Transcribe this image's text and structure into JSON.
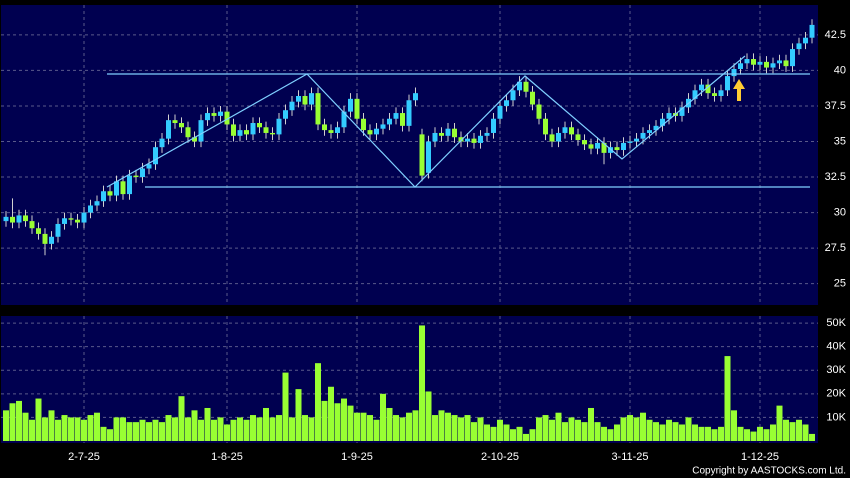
{
  "chart_data": [
    {
      "type": "candlestick",
      "up_color": "#33ccff",
      "down_color": "#99ff33",
      "grid": true,
      "categories": [
        null,
        null,
        null,
        null,
        null,
        null,
        null,
        null,
        null,
        null,
        null,
        null,
        "2-7-25",
        null,
        null,
        null,
        null,
        null,
        null,
        null,
        null,
        null,
        null,
        null,
        null,
        null,
        null,
        null,
        null,
        null,
        null,
        null,
        null,
        null,
        "1-8-25",
        null,
        null,
        null,
        null,
        null,
        null,
        null,
        null,
        null,
        null,
        null,
        null,
        null,
        null,
        null,
        null,
        null,
        null,
        null,
        "1-9-25",
        null,
        null,
        null,
        null,
        null,
        null,
        null,
        null,
        null,
        null,
        null,
        null,
        null,
        null,
        null,
        null,
        null,
        null,
        null,
        null,
        null,
        "2-10-25",
        null,
        null,
        null,
        null,
        null,
        null,
        null,
        null,
        null,
        null,
        null,
        null,
        null,
        null,
        null,
        null,
        null,
        null,
        null,
        "3-11-25",
        null,
        null,
        null,
        null,
        null,
        null,
        null,
        null,
        null,
        null,
        null,
        null,
        null,
        null,
        null,
        null,
        null,
        null,
        null,
        "1-12-25",
        null,
        null,
        null,
        null,
        null,
        null,
        null,
        null
      ],
      "open": [
        29.4,
        29.7,
        29.3,
        29.8,
        29.4,
        28.9,
        28.5,
        27.8,
        28.3,
        29.2,
        29.6,
        29.5,
        29.3,
        30.0,
        30.5,
        30.8,
        31.5,
        31.2,
        32.2,
        31.3,
        32.6,
        32.5,
        33.1,
        33.4,
        34.6,
        35.2,
        36.5,
        36.3,
        36.0,
        35.3,
        35.0,
        36.5,
        37.0,
        36.8,
        37.1,
        36.2,
        35.4,
        35.8,
        35.5,
        36.3,
        36.0,
        35.6,
        35.5,
        36.6,
        37.2,
        37.8,
        38.2,
        37.6,
        38.4,
        36.2,
        35.8,
        35.6,
        36.0,
        37.1,
        38.0,
        36.6,
        35.8,
        35.5,
        35.9,
        36.2,
        36.6,
        37.0,
        36.1,
        37.9,
        35.5,
        32.8,
        35.0,
        35.6,
        35.4,
        35.9,
        35.3,
        35.0,
        35.2,
        34.9,
        35.4,
        35.6,
        36.6,
        37.5,
        37.9,
        38.6,
        39.2,
        38.5,
        37.6,
        36.6,
        35.5,
        35.0,
        35.6,
        36.0,
        35.5,
        35.1,
        34.8,
        34.5,
        34.9,
        34.2,
        34.6,
        34.4,
        34.9,
        35.0,
        35.2,
        35.6,
        35.8,
        36.1,
        36.6,
        37.0,
        36.8,
        37.4,
        38.0,
        38.6,
        39.0,
        38.4,
        38.2,
        38.6,
        39.6,
        40.1,
        40.5,
        40.8,
        40.4,
        40.6,
        40.2,
        40.5,
        40.7,
        40.3,
        41.5,
        41.9,
        42.3
      ],
      "high": [
        30.1,
        31.0,
        30.2,
        30.2,
        29.8,
        29.3,
        28.9,
        28.7,
        29.6,
        30.0,
        30.0,
        29.9,
        30.4,
        30.9,
        31.2,
        31.9,
        31.9,
        32.6,
        32.6,
        33.0,
        33.0,
        33.5,
        33.8,
        35.0,
        35.6,
        36.9,
        36.9,
        36.7,
        36.4,
        35.7,
        36.9,
        37.4,
        37.4,
        37.5,
        37.5,
        36.6,
        36.2,
        36.2,
        36.7,
        36.7,
        36.4,
        36.0,
        37.0,
        37.6,
        38.2,
        38.6,
        38.6,
        38.8,
        38.8,
        36.6,
        36.2,
        36.4,
        37.5,
        38.4,
        38.4,
        37.0,
        36.2,
        36.3,
        36.6,
        37.0,
        37.4,
        37.4,
        38.3,
        38.8,
        35.9,
        35.4,
        36.0,
        36.0,
        36.3,
        36.3,
        35.7,
        35.6,
        35.6,
        35.8,
        36.0,
        37.0,
        37.9,
        38.3,
        39.0,
        39.6,
        39.6,
        38.9,
        38.0,
        37.0,
        35.9,
        36.0,
        36.4,
        36.4,
        35.9,
        35.5,
        35.2,
        35.3,
        35.3,
        35.0,
        35.0,
        35.3,
        35.4,
        35.6,
        36.0,
        36.2,
        36.5,
        37.0,
        37.4,
        37.4,
        37.8,
        38.4,
        39.0,
        39.4,
        39.4,
        38.8,
        39.0,
        40.0,
        40.5,
        40.9,
        41.2,
        41.2,
        41.0,
        41.0,
        40.9,
        41.1,
        41.1,
        41.9,
        42.3,
        42.7,
        43.6
      ],
      "low": [
        29.0,
        28.9,
        28.9,
        29.0,
        28.5,
        28.1,
        27.0,
        27.4,
        27.9,
        28.8,
        29.1,
        28.9,
        28.9,
        29.6,
        30.1,
        30.4,
        30.8,
        30.8,
        30.9,
        30.9,
        32.1,
        32.1,
        32.7,
        33.0,
        34.2,
        34.8,
        35.9,
        35.6,
        34.9,
        34.6,
        34.6,
        36.1,
        36.4,
        36.4,
        35.8,
        35.0,
        35.0,
        35.1,
        35.1,
        35.6,
        35.2,
        35.1,
        35.1,
        36.2,
        36.8,
        37.4,
        37.2,
        37.2,
        35.8,
        35.4,
        35.2,
        35.2,
        35.6,
        36.7,
        36.2,
        35.4,
        35.1,
        35.1,
        35.5,
        35.8,
        36.2,
        35.7,
        35.7,
        37.5,
        32.2,
        32.4,
        34.6,
        35.0,
        35.0,
        34.9,
        34.6,
        34.6,
        34.5,
        34.5,
        35.0,
        35.2,
        36.2,
        37.1,
        37.5,
        38.2,
        38.1,
        37.2,
        36.2,
        35.1,
        34.6,
        34.6,
        35.2,
        35.1,
        34.7,
        34.4,
        34.1,
        34.1,
        33.4,
        33.8,
        34.0,
        34.0,
        34.5,
        34.6,
        34.8,
        35.2,
        35.4,
        35.7,
        36.2,
        36.4,
        36.4,
        37.0,
        37.6,
        38.2,
        38.0,
        37.8,
        37.8,
        38.2,
        39.2,
        39.7,
        40.1,
        40.0,
        40.0,
        39.8,
        39.8,
        40.1,
        39.9,
        39.9,
        41.1,
        41.5,
        41.9
      ],
      "close": [
        29.7,
        29.3,
        29.8,
        29.4,
        28.9,
        28.5,
        27.8,
        28.3,
        29.2,
        29.6,
        29.5,
        29.3,
        30.0,
        30.5,
        30.8,
        31.5,
        31.2,
        32.2,
        31.3,
        32.6,
        32.5,
        33.1,
        33.4,
        34.6,
        35.2,
        36.5,
        36.3,
        36.0,
        35.3,
        35.0,
        36.5,
        37.0,
        36.8,
        37.1,
        36.2,
        35.4,
        35.8,
        35.5,
        36.3,
        36.0,
        35.6,
        35.5,
        36.6,
        37.2,
        37.8,
        38.2,
        37.6,
        38.4,
        36.2,
        35.8,
        35.6,
        36.0,
        37.1,
        38.0,
        36.6,
        35.8,
        35.5,
        35.9,
        36.2,
        36.6,
        37.0,
        36.1,
        37.9,
        38.4,
        32.6,
        35.0,
        35.6,
        35.4,
        35.9,
        35.3,
        35.0,
        35.2,
        34.9,
        35.4,
        35.6,
        36.6,
        37.5,
        37.9,
        38.6,
        39.2,
        38.5,
        37.6,
        36.6,
        35.5,
        35.0,
        35.6,
        36.0,
        35.5,
        35.1,
        34.8,
        34.5,
        34.9,
        34.2,
        34.6,
        34.4,
        34.9,
        35.0,
        35.2,
        35.6,
        35.8,
        36.1,
        36.6,
        37.0,
        36.8,
        37.4,
        38.0,
        38.6,
        39.0,
        38.4,
        38.2,
        38.6,
        39.6,
        40.1,
        40.5,
        40.8,
        40.4,
        40.6,
        40.2,
        40.5,
        40.7,
        40.3,
        41.5,
        41.9,
        42.3,
        43.2
      ],
      "ylim": [
        23.5,
        44.6
      ],
      "yticks": [
        25,
        27.5,
        30,
        32.5,
        35,
        37.5,
        40,
        42.5
      ]
    },
    {
      "type": "bar",
      "color": "#99ff33",
      "grid": true,
      "values": [
        13000,
        16000,
        17000,
        12000,
        9000,
        18000,
        10000,
        13000,
        9000,
        11000,
        10000,
        10000,
        9000,
        11000,
        12000,
        6000,
        5000,
        10000,
        10000,
        8000,
        8000,
        9000,
        8000,
        9000,
        8000,
        11000,
        10000,
        19000,
        10000,
        13000,
        9000,
        14000,
        9000,
        10000,
        7000,
        9000,
        10000,
        9000,
        11000,
        10000,
        14000,
        10000,
        11000,
        29000,
        10000,
        22000,
        11000,
        10000,
        33000,
        17000,
        23000,
        16000,
        18000,
        15000,
        12000,
        12000,
        11000,
        9000,
        20000,
        14000,
        11000,
        10000,
        12000,
        13000,
        49000,
        21000,
        11000,
        13000,
        12000,
        11000,
        10000,
        11000,
        8000,
        10000,
        7000,
        6000,
        9000,
        7000,
        5000,
        6000,
        3000,
        5000,
        10000,
        11000,
        9000,
        12000,
        8000,
        10000,
        9000,
        8000,
        14000,
        8000,
        6000,
        5000,
        7000,
        10000,
        11000,
        10000,
        12000,
        9000,
        8000,
        7000,
        9000,
        8000,
        7000,
        10000,
        7000,
        6000,
        6000,
        5000,
        6000,
        36000,
        13000,
        6000,
        5000,
        4000,
        6000,
        5000,
        7000,
        15000,
        9000,
        8000,
        9000,
        7000,
        3000
      ],
      "ylim": [
        0,
        53000
      ],
      "yticks": [
        {
          "value": 10000,
          "label": "10K"
        },
        {
          "value": 20000,
          "label": "20K"
        },
        {
          "value": 30000,
          "label": "30K"
        },
        {
          "value": 40000,
          "label": "40K"
        },
        {
          "value": 50000,
          "label": "50K"
        }
      ]
    }
  ],
  "source": "Copyright by AASTOCKS.com Ltd."
}
